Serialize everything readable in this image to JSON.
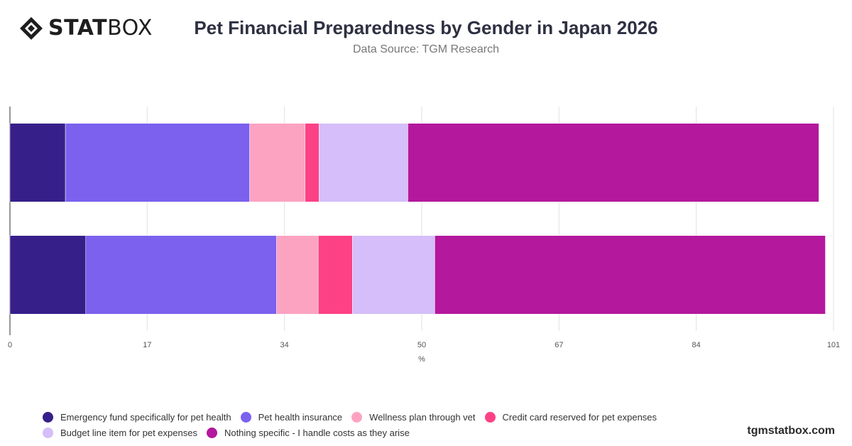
{
  "brand": {
    "logo_bold": "STAT",
    "logo_light": "BOX",
    "watermark": "tgmstatbox.com"
  },
  "header": {
    "title": "Pet Financial Preparedness by Gender in Japan 2026",
    "subtitle": "Data Source: TGM Research"
  },
  "chart_data": {
    "type": "bar",
    "orientation": "horizontal",
    "stacked": true,
    "title": "Pet Financial Preparedness by Gender in Japan 2026",
    "subtitle": "Data Source: TGM Research",
    "xlabel": "%",
    "ylabel": "",
    "xlim": [
      0,
      101
    ],
    "x_ticks": [
      "0",
      "17",
      "34",
      "50",
      "67",
      "84",
      "101"
    ],
    "categories": [
      "",
      ""
    ],
    "grid": true,
    "legend_position": "bottom",
    "series": [
      {
        "name": "Emergency fund specifically for pet health",
        "color": "#371f8a",
        "values": [
          6.8,
          9.3
        ]
      },
      {
        "name": "Pet health insurance",
        "color": "#7b61ee",
        "values": [
          22.6,
          23.4
        ]
      },
      {
        "name": "Wellness plan through vet",
        "color": "#fca3c2",
        "values": [
          6.8,
          5.1
        ]
      },
      {
        "name": "Credit card reserved for pet expenses",
        "color": "#fd4185",
        "values": [
          1.7,
          4.2
        ]
      },
      {
        "name": "Budget line item for pet expenses",
        "color": "#d5bef9",
        "values": [
          10.9,
          10.1
        ]
      },
      {
        "name": "Nothing specific - I handle costs as they arise",
        "color": "#b3189d",
        "values": [
          50.4,
          47.9
        ]
      }
    ]
  }
}
